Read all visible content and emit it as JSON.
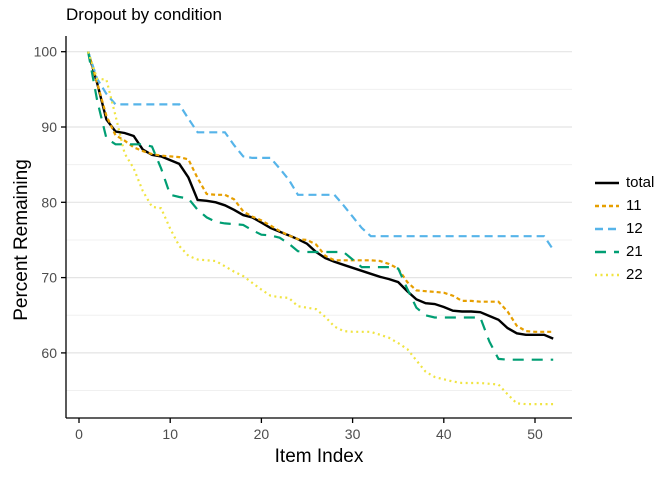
{
  "chart_data": {
    "type": "line",
    "title": "Dropout by condition",
    "xlabel": "Item Index",
    "ylabel": "Percent Remaining",
    "x_start": 1,
    "n_items": 52,
    "x_ticks": [
      0,
      10,
      20,
      30,
      40,
      50
    ],
    "y_ticks": [
      60,
      70,
      80,
      90,
      100
    ],
    "y_minor_gridlines": [
      55,
      65,
      75,
      85,
      95
    ],
    "xlim": [
      -1.5,
      54
    ],
    "ylim": [
      51,
      102
    ],
    "grid": "horizontal-only",
    "legend_position": "right",
    "axis_color": "#000000",
    "tick_label_color": "#4d4d4d",
    "major_grid_color": "#e4e4e4",
    "minor_grid_color": "#f0f0f0",
    "series": [
      {
        "name": "total",
        "color": "#000000",
        "linetype": "solid",
        "dash": "",
        "width": 2.4,
        "values": [
          100,
          95.8,
          91.0,
          89.4,
          89.2,
          88.8,
          87.0,
          86.3,
          86.1,
          85.6,
          85.1,
          83.3,
          80.3,
          80.2,
          80.0,
          79.6,
          79.0,
          78.3,
          78.0,
          77.3,
          76.6,
          76.1,
          75.6,
          75.1,
          74.5,
          73.4,
          72.6,
          72.1,
          71.7,
          71.3,
          70.9,
          70.5,
          70.1,
          69.8,
          69.4,
          68.2,
          67.1,
          66.6,
          66.5,
          66.1,
          65.6,
          65.5,
          65.5,
          65.4,
          64.9,
          64.4,
          63.3,
          62.6,
          62.4,
          62.4,
          62.4,
          61.9
        ]
      },
      {
        "name": "11",
        "color": "#E69F00",
        "linetype": "dashed",
        "dash": "4 3",
        "width": 2.2,
        "values": [
          100,
          95.8,
          91.5,
          88.9,
          88.2,
          87.3,
          86.8,
          86.4,
          86.2,
          86.1,
          86.0,
          85.7,
          83.2,
          81.1,
          81.0,
          81.0,
          80.4,
          78.8,
          78.1,
          77.6,
          76.9,
          76.2,
          75.6,
          75.1,
          75.0,
          74.4,
          72.9,
          72.3,
          72.3,
          72.3,
          72.3,
          72.3,
          72.2,
          71.8,
          71.2,
          69.4,
          68.3,
          68.2,
          68.1,
          68.0,
          67.6,
          66.9,
          66.9,
          66.8,
          66.8,
          66.8,
          65.5,
          63.6,
          62.9,
          62.8,
          62.8,
          62.8
        ]
      },
      {
        "name": "12",
        "color": "#56B4E9",
        "linetype": "medium-dash",
        "dash": "8 5",
        "width": 2.2,
        "values": [
          100,
          96.4,
          94.4,
          93.0,
          93.0,
          93.0,
          93.0,
          93.0,
          93.0,
          93.0,
          93.0,
          91.1,
          89.3,
          89.3,
          89.3,
          89.3,
          87.6,
          86.1,
          85.9,
          85.9,
          85.9,
          84.5,
          83.0,
          81.0,
          81.0,
          81.0,
          81.0,
          81.0,
          79.6,
          78.1,
          76.6,
          75.5,
          75.5,
          75.5,
          75.5,
          75.5,
          75.5,
          75.5,
          75.5,
          75.5,
          75.5,
          75.5,
          75.5,
          75.5,
          75.5,
          75.5,
          75.5,
          75.5,
          75.5,
          75.5,
          75.5,
          73.7
        ]
      },
      {
        "name": "21",
        "color": "#009E73",
        "linetype": "long-dash",
        "dash": "11 8",
        "width": 2.2,
        "values": [
          100,
          93.5,
          88.5,
          87.7,
          87.7,
          87.7,
          87.7,
          87.4,
          84.5,
          81.0,
          80.7,
          80.5,
          79.0,
          78.0,
          77.4,
          77.2,
          77.1,
          77.0,
          76.3,
          75.7,
          75.6,
          75.3,
          74.5,
          73.5,
          73.4,
          73.4,
          73.4,
          73.4,
          73.4,
          72.4,
          71.4,
          71.4,
          71.4,
          71.4,
          71.2,
          68.5,
          66.0,
          65.0,
          64.7,
          64.7,
          64.7,
          64.7,
          64.7,
          64.7,
          61.5,
          59.2,
          59.1,
          59.1,
          59.1,
          59.1,
          59.1,
          59.1
        ]
      },
      {
        "name": "22",
        "color": "#F0E442",
        "linetype": "dotted",
        "dash": "2 3.5",
        "width": 2.2,
        "values": [
          100,
          96.4,
          96.3,
          91.5,
          86.5,
          84.5,
          81.5,
          79.4,
          79.2,
          76.5,
          74.2,
          72.9,
          72.4,
          72.3,
          72.2,
          71.5,
          70.8,
          70.2,
          69.3,
          68.4,
          67.6,
          67.4,
          67.3,
          66.2,
          66.0,
          65.8,
          64.8,
          63.5,
          62.9,
          62.8,
          62.8,
          62.8,
          62.4,
          62.0,
          61.3,
          60.5,
          59.0,
          57.5,
          56.8,
          56.5,
          56.2,
          56.0,
          56.0,
          56.0,
          55.9,
          55.8,
          54.5,
          53.3,
          53.2,
          53.2,
          53.2,
          53.2
        ]
      }
    ]
  }
}
